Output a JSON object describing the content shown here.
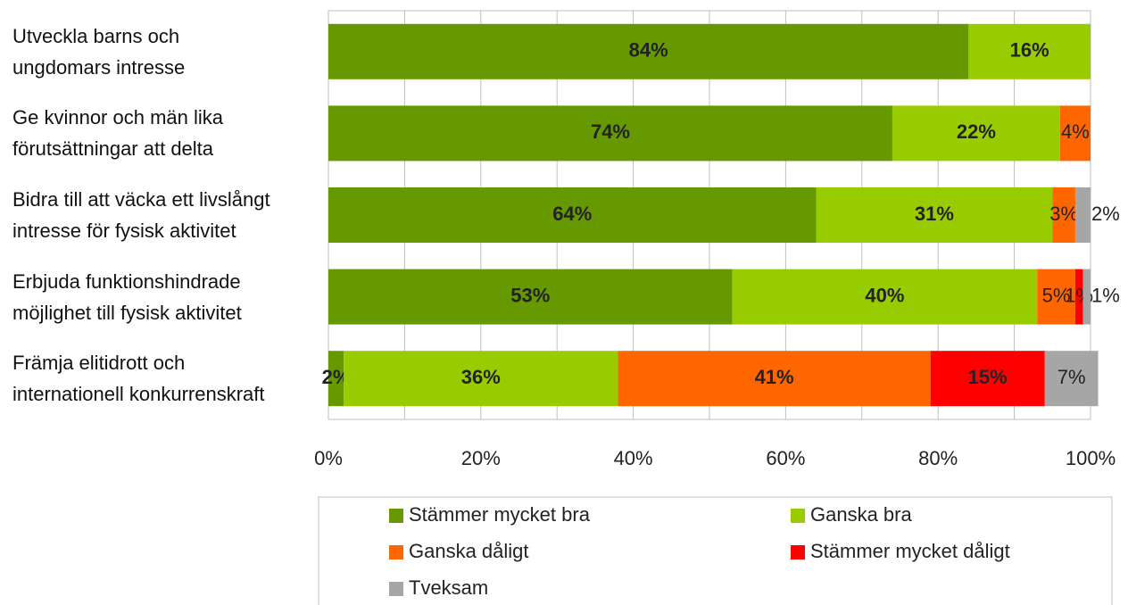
{
  "chart_data": {
    "type": "stacked_barh",
    "categories": [
      "Utveckla barns och\nungdomars intresse",
      "Ge kvinnor och män lika\nförutsättningar att delta",
      "Bidra till att väcka ett livslångt\nintresse för fysisk aktivitet",
      "Erbjuda funktionshindrade\nmöjlighet till fysisk aktivitet",
      "Främja elitidrott och\ninternationell konkurrenskraft"
    ],
    "series": [
      {
        "name": "Stämmer mycket bra",
        "color": "#669900",
        "values": [
          84,
          74,
          64,
          53,
          2
        ],
        "value_labels": [
          "84%",
          "74%",
          "64%",
          "53%",
          "2%"
        ]
      },
      {
        "name": "Ganska bra",
        "color": "#99cc00",
        "values": [
          16,
          22,
          31,
          40,
          36
        ],
        "value_labels": [
          "16%",
          "22%",
          "31%",
          "40%",
          "36%"
        ]
      },
      {
        "name": "Ganska dåligt",
        "color": "#ff6600",
        "values": [
          null,
          4,
          3,
          5,
          41
        ],
        "value_labels": [
          null,
          "4%",
          "3%",
          "5%",
          "41%"
        ]
      },
      {
        "name": "Stämmer mycket dåligt",
        "color": "#ff0000",
        "values": [
          null,
          null,
          null,
          1,
          15
        ],
        "value_labels": [
          null,
          null,
          null,
          "1%",
          "15%"
        ]
      },
      {
        "name": "Tveksam",
        "color": "#a6a6a6",
        "values": [
          null,
          null,
          2,
          1,
          7
        ],
        "value_labels": [
          null,
          null,
          "2%",
          "1%",
          "7%"
        ]
      }
    ],
    "xlim": [
      0,
      100
    ],
    "xticks": [
      {
        "value": 0,
        "label": "0%"
      },
      10,
      {
        "value": 20,
        "label": "20%"
      },
      30,
      {
        "value": 40,
        "label": "40%"
      },
      50,
      {
        "value": 60,
        "label": "60%"
      },
      70,
      {
        "value": 80,
        "label": "80%"
      },
      90,
      {
        "value": 100,
        "label": "100%"
      }
    ],
    "grid": true,
    "legend": "bottom"
  }
}
